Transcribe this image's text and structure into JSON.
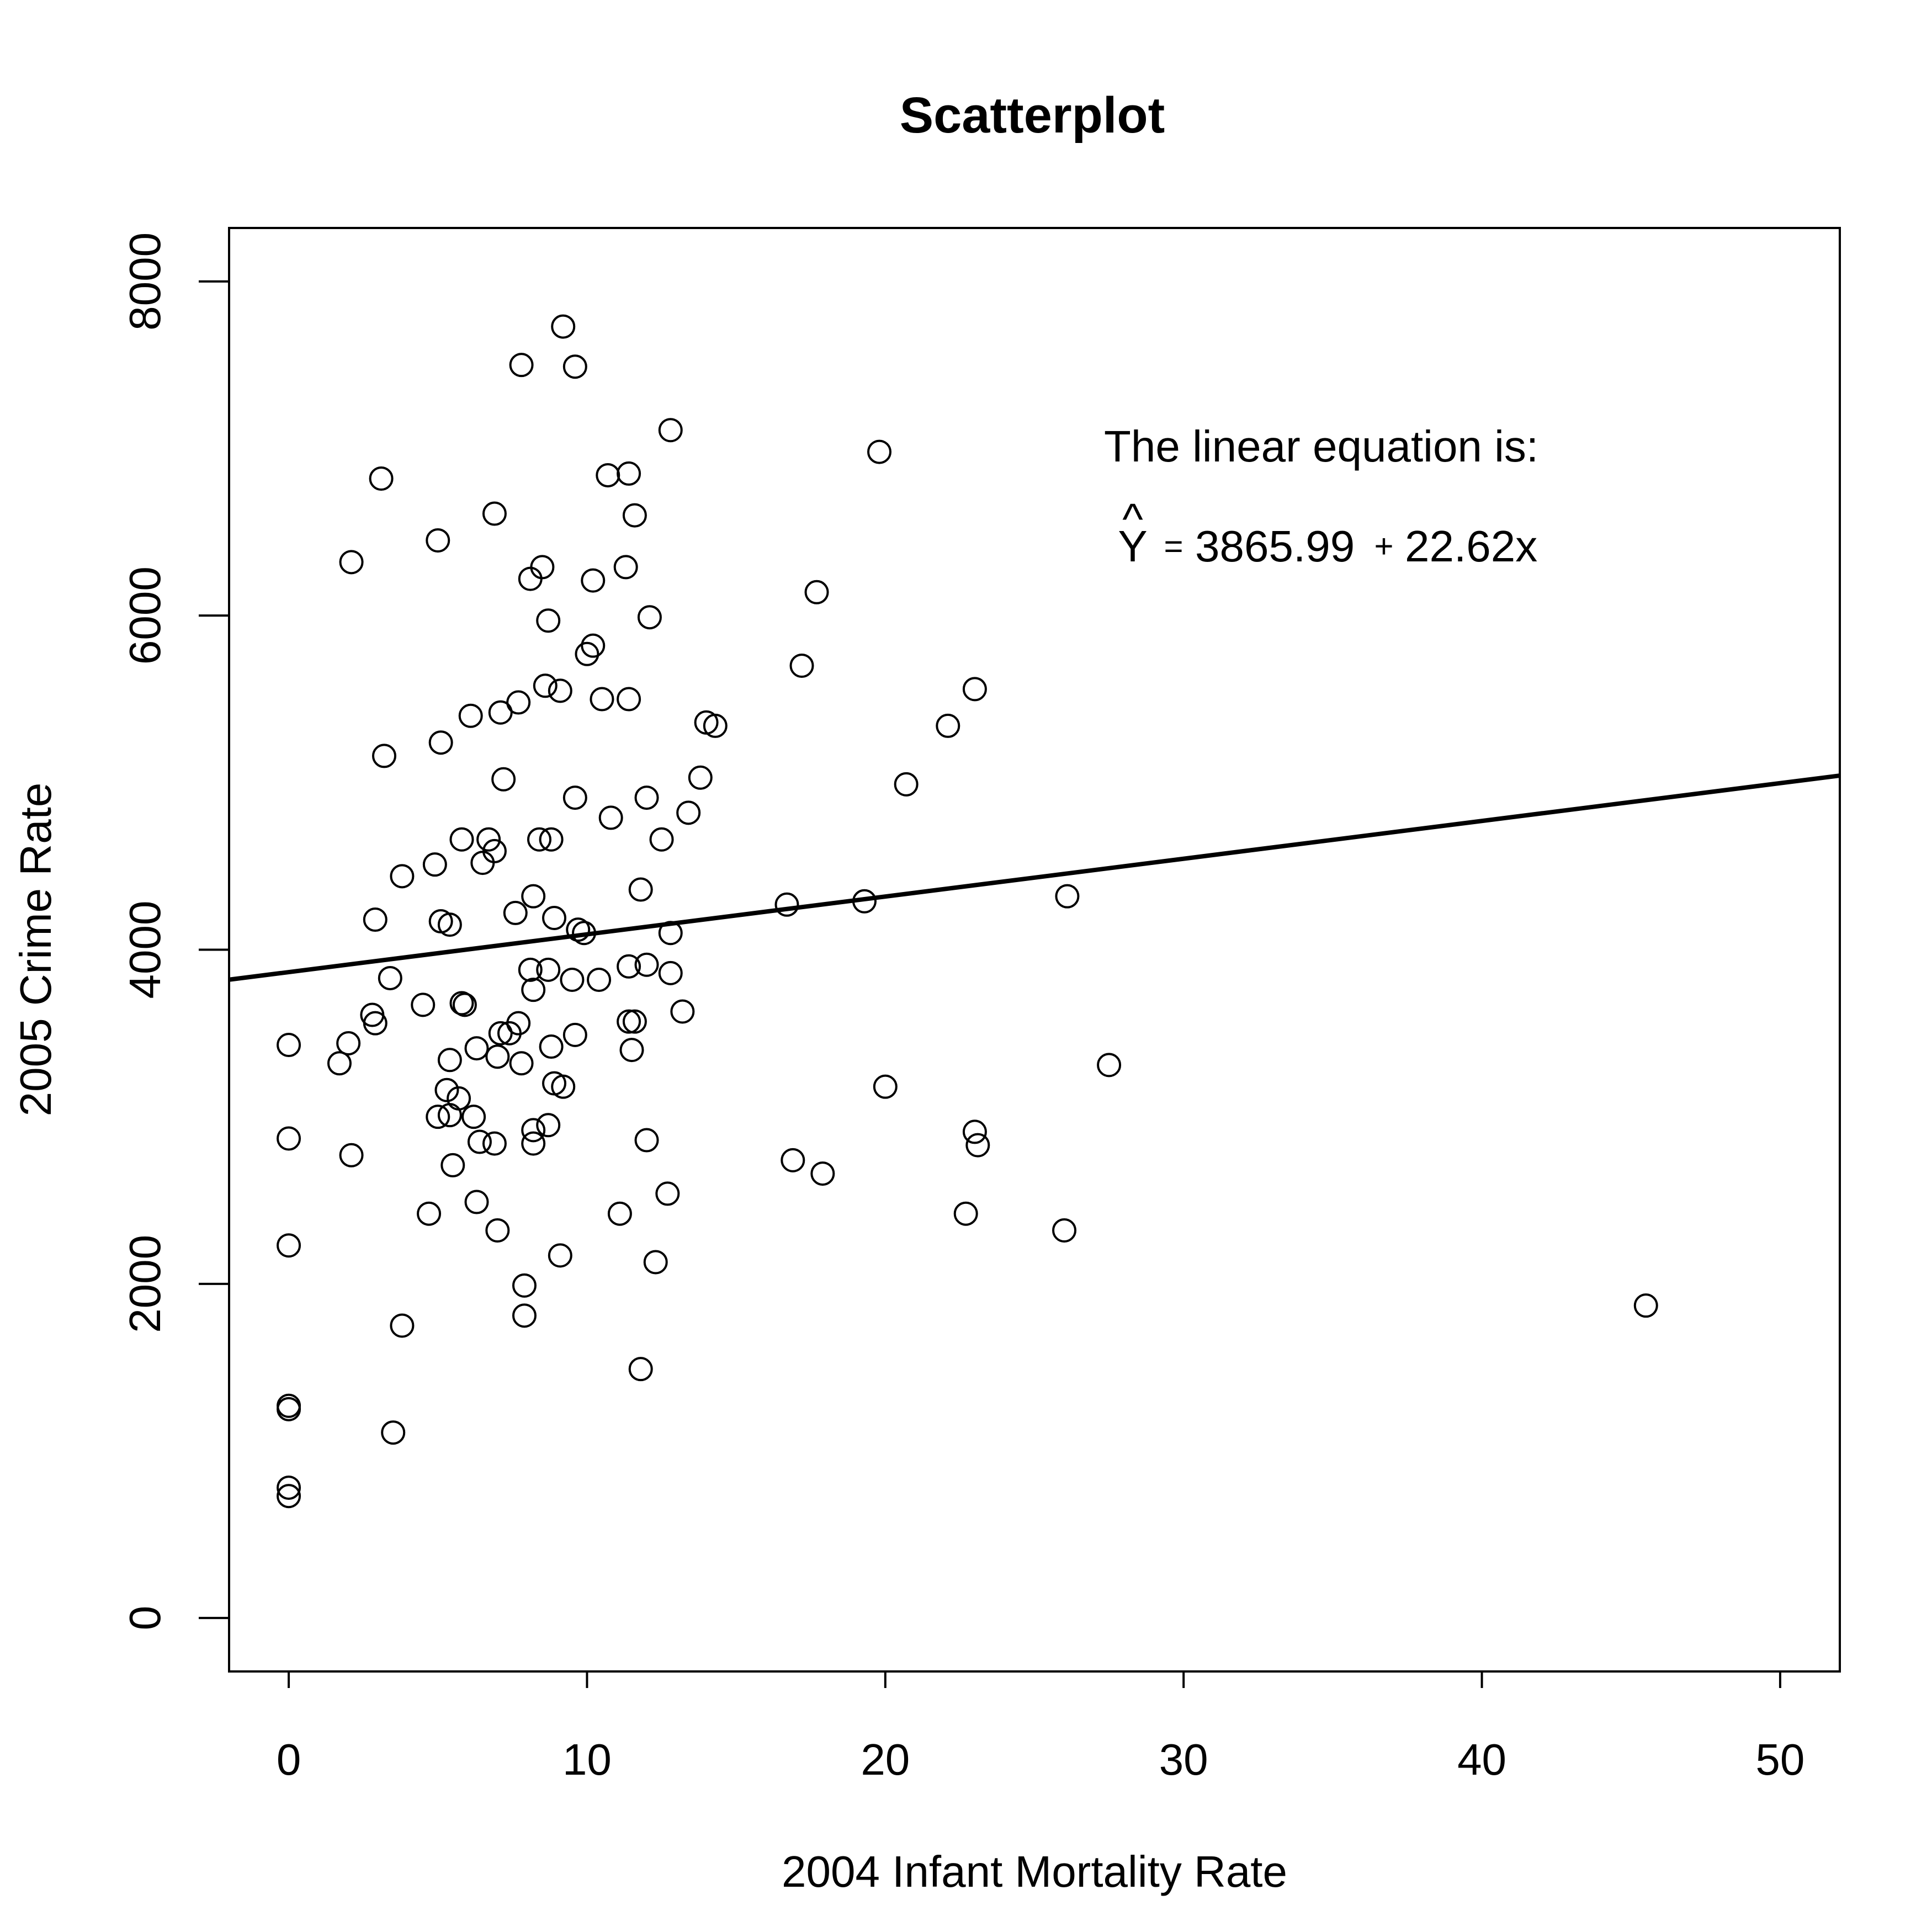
{
  "chart_data": {
    "type": "scatter",
    "title": "Scatterplot",
    "xlabel": "2004 Infant Mortality Rate",
    "ylabel": "2005 Crime Rate",
    "xlim": [
      -2,
      52
    ],
    "ylim": [
      -320,
      8320
    ],
    "xticks": [
      0,
      10,
      20,
      30,
      40,
      50
    ],
    "yticks": [
      0,
      2000,
      4000,
      6000,
      8000
    ],
    "grid": false,
    "annotation": {
      "line1": "The linear equation is:",
      "yhat": "Y",
      "hat": "^",
      "equals": "=",
      "intercept": "3865.99",
      "plus": "+",
      "slope_term": "22.62x"
    },
    "fit_line": {
      "intercept": 3865.99,
      "slope": 22.62
    },
    "points": [
      [
        9.2,
        7730
      ],
      [
        7.8,
        7500
      ],
      [
        9.6,
        7490
      ],
      [
        12.8,
        7110
      ],
      [
        19.8,
        6980
      ],
      [
        3.1,
        6820
      ],
      [
        10.7,
        6840
      ],
      [
        11.4,
        6850
      ],
      [
        6.9,
        6610
      ],
      [
        11.6,
        6600
      ],
      [
        5.0,
        6450
      ],
      [
        2.1,
        6320
      ],
      [
        8.5,
        6290
      ],
      [
        11.3,
        6290
      ],
      [
        8.1,
        6220
      ],
      [
        10.2,
        6210
      ],
      [
        17.7,
        6140
      ],
      [
        8.7,
        5970
      ],
      [
        12.1,
        5990
      ],
      [
        10.2,
        5820
      ],
      [
        10.0,
        5770
      ],
      [
        17.2,
        5700
      ],
      [
        23.0,
        5560
      ],
      [
        8.6,
        5580
      ],
      [
        9.1,
        5550
      ],
      [
        10.5,
        5500
      ],
      [
        11.4,
        5500
      ],
      [
        7.7,
        5480
      ],
      [
        7.1,
        5420
      ],
      [
        6.1,
        5400
      ],
      [
        14.0,
        5360
      ],
      [
        14.3,
        5340
      ],
      [
        22.1,
        5340
      ],
      [
        5.1,
        5240
      ],
      [
        3.2,
        5160
      ],
      [
        13.8,
        5030
      ],
      [
        7.2,
        5020
      ],
      [
        20.7,
        4990
      ],
      [
        9.6,
        4910
      ],
      [
        12.0,
        4910
      ],
      [
        13.4,
        4820
      ],
      [
        10.8,
        4790
      ],
      [
        5.8,
        4660
      ],
      [
        6.7,
        4660
      ],
      [
        8.4,
        4660
      ],
      [
        8.8,
        4660
      ],
      [
        12.5,
        4660
      ],
      [
        6.9,
        4590
      ],
      [
        6.5,
        4520
      ],
      [
        4.9,
        4510
      ],
      [
        3.8,
        4440
      ],
      [
        11.8,
        4360
      ],
      [
        8.2,
        4320
      ],
      [
        26.1,
        4320
      ],
      [
        19.3,
        4290
      ],
      [
        16.7,
        4270
      ],
      [
        7.6,
        4220
      ],
      [
        2.9,
        4180
      ],
      [
        8.9,
        4190
      ],
      [
        5.1,
        4170
      ],
      [
        5.4,
        4150
      ],
      [
        9.7,
        4120
      ],
      [
        9.9,
        4100
      ],
      [
        12.8,
        4100
      ],
      [
        12.0,
        3910
      ],
      [
        11.4,
        3900
      ],
      [
        8.1,
        3880
      ],
      [
        8.7,
        3880
      ],
      [
        12.8,
        3860
      ],
      [
        3.4,
        3830
      ],
      [
        9.5,
        3820
      ],
      [
        10.4,
        3820
      ],
      [
        8.2,
        3760
      ],
      [
        4.5,
        3670
      ],
      [
        5.8,
        3680
      ],
      [
        5.9,
        3670
      ],
      [
        13.2,
        3630
      ],
      [
        2.8,
        3610
      ],
      [
        2.9,
        3560
      ],
      [
        7.7,
        3560
      ],
      [
        11.4,
        3570
      ],
      [
        11.6,
        3570
      ],
      [
        7.4,
        3500
      ],
      [
        7.1,
        3500
      ],
      [
        9.6,
        3490
      ],
      [
        0.0,
        3430
      ],
      [
        2.0,
        3440
      ],
      [
        8.8,
        3420
      ],
      [
        6.3,
        3410
      ],
      [
        11.5,
        3400
      ],
      [
        7.0,
        3360
      ],
      [
        5.4,
        3340
      ],
      [
        1.7,
        3320
      ],
      [
        7.8,
        3320
      ],
      [
        27.5,
        3310
      ],
      [
        8.9,
        3200
      ],
      [
        9.2,
        3180
      ],
      [
        20.0,
        3180
      ],
      [
        5.3,
        3160
      ],
      [
        5.7,
        3110
      ],
      [
        5.0,
        3000
      ],
      [
        5.4,
        3010
      ],
      [
        6.2,
        3000
      ],
      [
        8.7,
        2950
      ],
      [
        8.2,
        2920
      ],
      [
        23.0,
        2910
      ],
      [
        0.0,
        2870
      ],
      [
        12.0,
        2860
      ],
      [
        6.4,
        2850
      ],
      [
        6.9,
        2840
      ],
      [
        8.2,
        2840
      ],
      [
        23.1,
        2830
      ],
      [
        2.1,
        2770
      ],
      [
        16.9,
        2740
      ],
      [
        5.5,
        2710
      ],
      [
        17.9,
        2660
      ],
      [
        12.7,
        2540
      ],
      [
        6.3,
        2490
      ],
      [
        4.7,
        2420
      ],
      [
        11.1,
        2420
      ],
      [
        22.7,
        2420
      ],
      [
        7.0,
        2320
      ],
      [
        26.0,
        2320
      ],
      [
        0.0,
        2230
      ],
      [
        9.1,
        2170
      ],
      [
        12.3,
        2130
      ],
      [
        7.9,
        1990
      ],
      [
        45.5,
        1870
      ],
      [
        7.9,
        1810
      ],
      [
        3.8,
        1750
      ],
      [
        11.8,
        1490
      ],
      [
        0.0,
        1270
      ],
      [
        0.0,
        1250
      ],
      [
        3.5,
        1110
      ],
      [
        0.0,
        780
      ],
      [
        0.0,
        730
      ]
    ]
  }
}
